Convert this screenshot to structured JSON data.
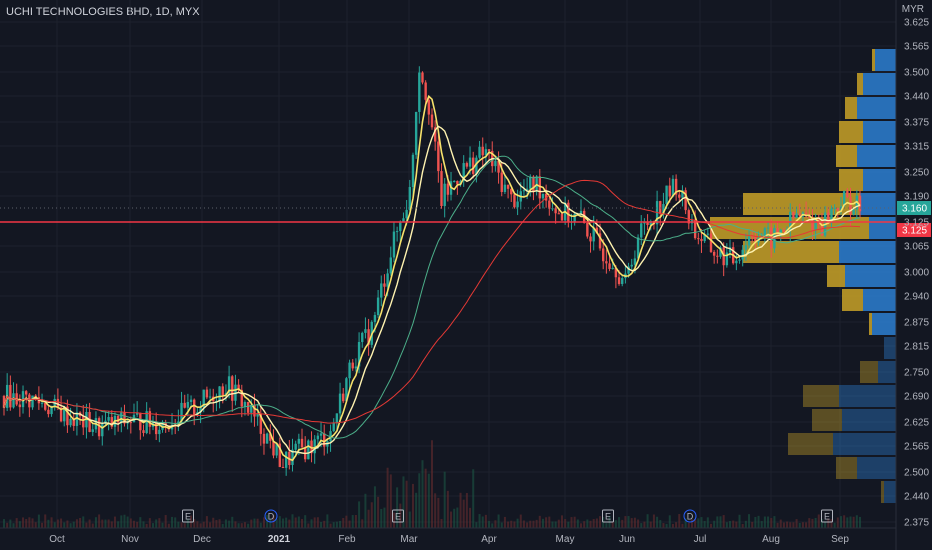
{
  "header": {
    "symbol_title": "UCHI TECHNOLOGIES BHD, 1D, MYX",
    "currency": "MYR"
  },
  "chart_data": {
    "type": "candlestick",
    "title": "UCHI TECHNOLOGIES BHD, 1D, MYX",
    "currency": "MYR",
    "y_ticks": [
      "3.625",
      "3.565",
      "3.500",
      "3.440",
      "3.375",
      "3.315",
      "3.250",
      "3.190",
      "3.125",
      "3.065",
      "3.000",
      "2.940",
      "2.875",
      "2.815",
      "2.750",
      "2.690",
      "2.625",
      "2.565",
      "2.500",
      "2.440",
      "2.375"
    ],
    "ylim": [
      2.375,
      3.625
    ],
    "x_ticks": [
      "Oct",
      "Nov",
      "Dec",
      "2021",
      "Feb",
      "Mar",
      "Apr",
      "May",
      "Jun",
      "Jul",
      "Aug",
      "Sep"
    ],
    "last_price": {
      "label": "3.160",
      "value": 3.16,
      "color": "#26a69a"
    },
    "horizontal_line": {
      "label": "3.125",
      "value": 3.125,
      "color": "#f23645"
    },
    "events": [
      {
        "label": "E",
        "month": "Dec"
      },
      {
        "label": "D",
        "month": "2021"
      },
      {
        "label": "E",
        "month": "Mar"
      },
      {
        "label": "E",
        "month": "Jun"
      },
      {
        "label": "D",
        "month": "Jul"
      },
      {
        "label": "E",
        "month": "Sep"
      }
    ],
    "price_path": [
      [
        0,
        2.69
      ],
      [
        10,
        2.68
      ],
      [
        20,
        2.64
      ],
      [
        30,
        2.61
      ],
      [
        40,
        2.63
      ],
      [
        50,
        2.62
      ],
      [
        60,
        2.66
      ],
      [
        70,
        2.72
      ],
      [
        75,
        2.68
      ],
      [
        82,
        2.6
      ],
      [
        88,
        2.52
      ],
      [
        92,
        2.55
      ],
      [
        98,
        2.57
      ],
      [
        103,
        2.6
      ],
      [
        110,
        2.78
      ],
      [
        116,
        2.86
      ],
      [
        122,
        3.05
      ],
      [
        128,
        3.2
      ],
      [
        131,
        3.52
      ],
      [
        134,
        3.42
      ],
      [
        138,
        3.18
      ],
      [
        144,
        3.25
      ],
      [
        152,
        3.3
      ],
      [
        160,
        3.18
      ],
      [
        168,
        3.22
      ],
      [
        175,
        3.15
      ],
      [
        182,
        3.13
      ],
      [
        188,
        3.06
      ],
      [
        192,
        3.03
      ],
      [
        196,
        2.97
      ],
      [
        200,
        3.09
      ],
      [
        206,
        3.16
      ],
      [
        212,
        3.22
      ],
      [
        218,
        3.1
      ],
      [
        224,
        3.05
      ],
      [
        230,
        3.03
      ],
      [
        236,
        3.1
      ],
      [
        242,
        3.08
      ],
      [
        250,
        3.14
      ],
      [
        258,
        3.12
      ],
      [
        264,
        3.18
      ],
      [
        270,
        3.16
      ]
    ],
    "moving_averages": [
      {
        "color": "#f7e26b"
      },
      {
        "color": "#fff3b0"
      },
      {
        "color": "#4caf8a"
      },
      {
        "color": "#e53935"
      }
    ],
    "volume_profile": [
      {
        "price": 3.53,
        "up": 0.35,
        "down": 0.05
      },
      {
        "price": 3.47,
        "up": 0.55,
        "down": 0.1
      },
      {
        "price": 3.41,
        "up": 0.65,
        "down": 0.2
      },
      {
        "price": 3.35,
        "up": 0.55,
        "down": 0.4
      },
      {
        "price": 3.29,
        "up": 0.65,
        "down": 0.35
      },
      {
        "price": 3.23,
        "up": 0.55,
        "down": 0.4
      },
      {
        "price": 3.17,
        "up": 0.6,
        "down": 1.95
      },
      {
        "price": 3.11,
        "up": 0.45,
        "down": 2.65
      },
      {
        "price": 3.05,
        "up": 0.95,
        "down": 1.6
      },
      {
        "price": 2.99,
        "up": 0.85,
        "down": 0.3
      },
      {
        "price": 2.93,
        "up": 0.55,
        "down": 0.35
      },
      {
        "price": 2.87,
        "up": 0.4,
        "down": 0.05
      },
      {
        "price": 2.81,
        "up": 0.2,
        "down": 0.0
      },
      {
        "price": 2.75,
        "up": 0.3,
        "down": 0.3
      },
      {
        "price": 2.69,
        "up": 0.95,
        "down": 0.6
      },
      {
        "price": 2.63,
        "up": 0.9,
        "down": 0.5
      },
      {
        "price": 2.57,
        "up": 1.05,
        "down": 0.75
      },
      {
        "price": 2.51,
        "up": 0.65,
        "down": 0.35
      },
      {
        "price": 2.45,
        "up": 0.2,
        "down": 0.05
      }
    ],
    "colors": {
      "up": "#26a69a",
      "down": "#ef5350",
      "profile_up": "#2d7fd1",
      "profile_down": "#c9a227"
    }
  }
}
